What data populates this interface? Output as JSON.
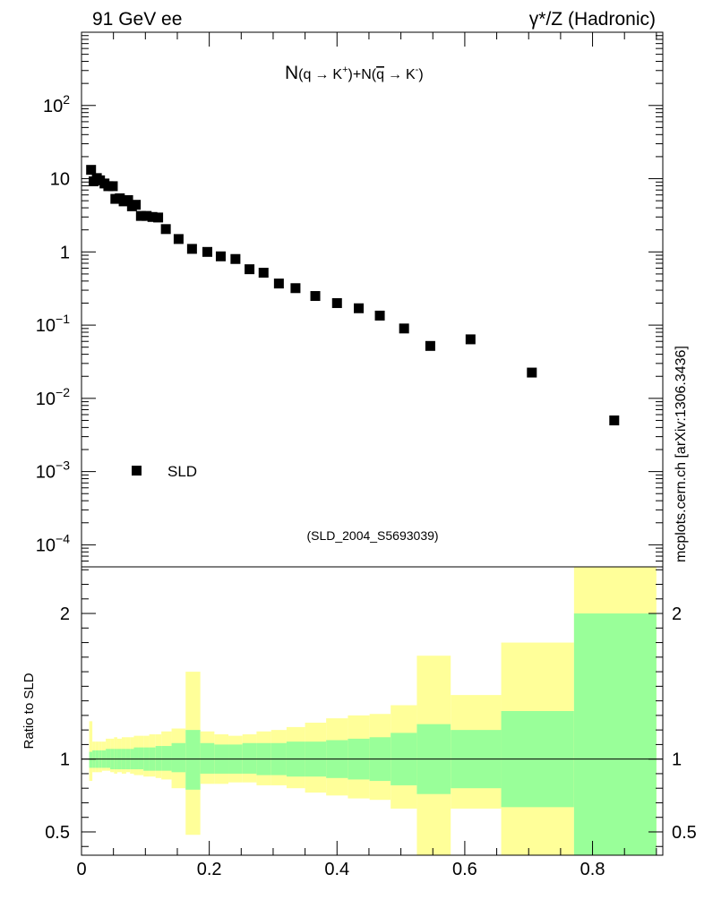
{
  "header": {
    "left_label": "91 GeV ee",
    "right_label": "γ*/Z (Hadronic)"
  },
  "side_label": "mcplots.cern.ch [arXiv:1306.3436]",
  "colors": {
    "band_inner": "#99ff99",
    "band_outer": "#ffff99",
    "marker": "#000000",
    "ref_label": "#999999"
  },
  "chart_data": [
    {
      "type": "scatter",
      "title": "N(q→ K⁺)+N(q̄→ K⁻)",
      "title_parts": {
        "n1": "N",
        "q1": "(q",
        "arrow1": "→",
        "k1": "K",
        "sup1": "+",
        "mid": ")+N(",
        "q2": "q",
        "arrow2": "→",
        "k2": "K",
        "sup2": "-",
        "end": ")"
      },
      "yscale": "log",
      "ylim": [
        5e-05,
        1000
      ],
      "xlim": [
        0,
        0.91
      ],
      "ytick_labels": [
        {
          "base": "10",
          "exp": "2",
          "value": 100
        },
        {
          "base": "10",
          "exp": "",
          "value": 10
        },
        {
          "base": "1",
          "exp": "",
          "value": 1
        },
        {
          "base": "10",
          "exp": "−1",
          "value": 0.1
        },
        {
          "base": "10",
          "exp": "−2",
          "value": 0.01
        },
        {
          "base": "10",
          "exp": "−3",
          "value": 0.001
        },
        {
          "base": "10",
          "exp": "−4",
          "value": 0.0001
        }
      ],
      "legend": {
        "entries": [
          "SLD"
        ],
        "placement": "bottom-left"
      },
      "reference_label": "(SLD_2004_S5693039)",
      "series": [
        {
          "name": "SLD",
          "x": [
            0.015,
            0.019,
            0.024,
            0.029,
            0.036,
            0.042,
            0.049,
            0.053,
            0.06,
            0.066,
            0.073,
            0.079,
            0.085,
            0.093,
            0.102,
            0.111,
            0.12,
            0.132,
            0.152,
            0.173,
            0.197,
            0.218,
            0.241,
            0.263,
            0.285,
            0.309,
            0.335,
            0.366,
            0.4,
            0.434,
            0.467,
            0.505,
            0.546,
            0.609,
            0.705,
            0.834
          ],
          "y": [
            13.2,
            9.2,
            10.2,
            9.5,
            8.6,
            7.9,
            7.9,
            5.3,
            5.4,
            4.9,
            5.1,
            4.2,
            4.4,
            3.1,
            3.1,
            3.0,
            2.95,
            2.05,
            1.5,
            1.1,
            1.0,
            0.87,
            0.8,
            0.58,
            0.52,
            0.37,
            0.32,
            0.25,
            0.2,
            0.17,
            0.135,
            0.09,
            0.052,
            0.064,
            0.0225,
            0.005
          ]
        }
      ]
    },
    {
      "type": "area",
      "ylabel": "Ratio to SLD",
      "xlim": [
        0,
        0.91
      ],
      "ylim": [
        0.34,
        2.32
      ],
      "ytick_labels": [
        "0.5",
        "1",
        "2"
      ],
      "yticks": [
        0.5,
        1,
        2
      ],
      "xtick_labels": [
        "0",
        "0.2",
        "0.4",
        "0.6",
        "0.8"
      ],
      "xticks": [
        0,
        0.2,
        0.4,
        0.6,
        0.8
      ],
      "reference_line": 1,
      "bands": [
        {
          "x0": 0.012,
          "x1": 0.017,
          "in_lo": 0.94,
          "in_hi": 1.05,
          "out_lo": 0.85,
          "out_hi": 1.26
        },
        {
          "x0": 0.017,
          "x1": 0.022,
          "in_lo": 0.94,
          "in_hi": 1.06,
          "out_lo": 0.91,
          "out_hi": 1.12
        },
        {
          "x0": 0.022,
          "x1": 0.027,
          "in_lo": 0.94,
          "in_hi": 1.06,
          "out_lo": 0.91,
          "out_hi": 1.12
        },
        {
          "x0": 0.027,
          "x1": 0.032,
          "in_lo": 0.94,
          "in_hi": 1.06,
          "out_lo": 0.91,
          "out_hi": 1.12
        },
        {
          "x0": 0.032,
          "x1": 0.038,
          "in_lo": 0.94,
          "in_hi": 1.06,
          "out_lo": 0.92,
          "out_hi": 1.12
        },
        {
          "x0": 0.038,
          "x1": 0.045,
          "in_lo": 0.94,
          "in_hi": 1.07,
          "out_lo": 0.92,
          "out_hi": 1.14
        },
        {
          "x0": 0.045,
          "x1": 0.051,
          "in_lo": 0.93,
          "in_hi": 1.07,
          "out_lo": 0.91,
          "out_hi": 1.14
        },
        {
          "x0": 0.051,
          "x1": 0.056,
          "in_lo": 0.93,
          "in_hi": 1.07,
          "out_lo": 0.9,
          "out_hi": 1.15
        },
        {
          "x0": 0.056,
          "x1": 0.063,
          "in_lo": 0.93,
          "in_hi": 1.07,
          "out_lo": 0.91,
          "out_hi": 1.14
        },
        {
          "x0": 0.063,
          "x1": 0.07,
          "in_lo": 0.93,
          "in_hi": 1.07,
          "out_lo": 0.9,
          "out_hi": 1.15
        },
        {
          "x0": 0.07,
          "x1": 0.076,
          "in_lo": 0.93,
          "in_hi": 1.07,
          "out_lo": 0.91,
          "out_hi": 1.15
        },
        {
          "x0": 0.076,
          "x1": 0.082,
          "in_lo": 0.93,
          "in_hi": 1.07,
          "out_lo": 0.9,
          "out_hi": 1.15
        },
        {
          "x0": 0.082,
          "x1": 0.089,
          "in_lo": 0.93,
          "in_hi": 1.08,
          "out_lo": 0.89,
          "out_hi": 1.16
        },
        {
          "x0": 0.089,
          "x1": 0.097,
          "in_lo": 0.93,
          "in_hi": 1.08,
          "out_lo": 0.89,
          "out_hi": 1.16
        },
        {
          "x0": 0.097,
          "x1": 0.106,
          "in_lo": 0.92,
          "in_hi": 1.08,
          "out_lo": 0.88,
          "out_hi": 1.16
        },
        {
          "x0": 0.106,
          "x1": 0.116,
          "in_lo": 0.92,
          "in_hi": 1.08,
          "out_lo": 0.88,
          "out_hi": 1.17
        },
        {
          "x0": 0.116,
          "x1": 0.125,
          "in_lo": 0.92,
          "in_hi": 1.09,
          "out_lo": 0.87,
          "out_hi": 1.17
        },
        {
          "x0": 0.125,
          "x1": 0.141,
          "in_lo": 0.92,
          "in_hi": 1.09,
          "out_lo": 0.86,
          "out_hi": 1.19
        },
        {
          "x0": 0.141,
          "x1": 0.163,
          "in_lo": 0.91,
          "in_hi": 1.11,
          "out_lo": 0.8,
          "out_hi": 1.21
        },
        {
          "x0": 0.163,
          "x1": 0.186,
          "in_lo": 0.79,
          "in_hi": 1.2,
          "out_lo": 0.48,
          "out_hi": 1.6
        },
        {
          "x0": 0.186,
          "x1": 0.208,
          "in_lo": 0.9,
          "in_hi": 1.11,
          "out_lo": 0.83,
          "out_hi": 1.19
        },
        {
          "x0": 0.208,
          "x1": 0.23,
          "in_lo": 0.9,
          "in_hi": 1.1,
          "out_lo": 0.83,
          "out_hi": 1.17
        },
        {
          "x0": 0.23,
          "x1": 0.252,
          "in_lo": 0.9,
          "in_hi": 1.1,
          "out_lo": 0.84,
          "out_hi": 1.16
        },
        {
          "x0": 0.252,
          "x1": 0.274,
          "in_lo": 0.9,
          "in_hi": 1.11,
          "out_lo": 0.84,
          "out_hi": 1.17
        },
        {
          "x0": 0.274,
          "x1": 0.297,
          "in_lo": 0.89,
          "in_hi": 1.11,
          "out_lo": 0.82,
          "out_hi": 1.19
        },
        {
          "x0": 0.297,
          "x1": 0.321,
          "in_lo": 0.89,
          "in_hi": 1.11,
          "out_lo": 0.82,
          "out_hi": 1.2
        },
        {
          "x0": 0.321,
          "x1": 0.35,
          "in_lo": 0.88,
          "in_hi": 1.12,
          "out_lo": 0.8,
          "out_hi": 1.22
        },
        {
          "x0": 0.35,
          "x1": 0.383,
          "in_lo": 0.88,
          "in_hi": 1.12,
          "out_lo": 0.77,
          "out_hi": 1.25
        },
        {
          "x0": 0.383,
          "x1": 0.417,
          "in_lo": 0.87,
          "in_hi": 1.13,
          "out_lo": 0.75,
          "out_hi": 1.28
        },
        {
          "x0": 0.417,
          "x1": 0.451,
          "in_lo": 0.86,
          "in_hi": 1.14,
          "out_lo": 0.73,
          "out_hi": 1.3
        },
        {
          "x0": 0.451,
          "x1": 0.484,
          "in_lo": 0.85,
          "in_hi": 1.15,
          "out_lo": 0.72,
          "out_hi": 1.31
        },
        {
          "x0": 0.484,
          "x1": 0.525,
          "in_lo": 0.82,
          "in_hi": 1.18,
          "out_lo": 0.66,
          "out_hi": 1.37
        },
        {
          "x0": 0.525,
          "x1": 0.578,
          "in_lo": 0.76,
          "in_hi": 1.24,
          "out_lo": 0.34,
          "out_hi": 1.71
        },
        {
          "x0": 0.578,
          "x1": 0.657,
          "in_lo": 0.8,
          "in_hi": 1.2,
          "out_lo": 0.66,
          "out_hi": 1.44
        },
        {
          "x0": 0.657,
          "x1": 0.771,
          "in_lo": 0.67,
          "in_hi": 1.33,
          "out_lo": 0.34,
          "out_hi": 1.8
        },
        {
          "x0": 0.771,
          "x1": 0.9,
          "in_lo": 0.34,
          "in_hi": 2.0,
          "out_lo": 0.34,
          "out_hi": 2.32
        }
      ]
    }
  ]
}
